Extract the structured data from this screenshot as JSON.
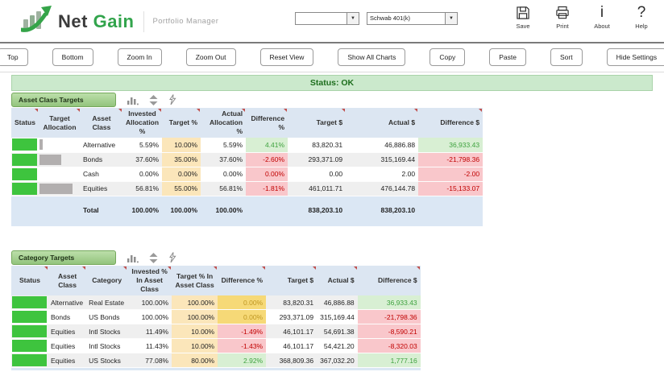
{
  "header": {
    "brand": {
      "name_primary": "Net",
      "name_secondary": "Gain",
      "subtitle": "Portfolio Manager"
    },
    "dropdowns": [
      {
        "value": ""
      },
      {
        "value": "Schwab 401(k)"
      }
    ],
    "actions": [
      {
        "label": "Save"
      },
      {
        "label": "Print"
      },
      {
        "label": "About",
        "glyph": "i"
      },
      {
        "label": "Help",
        "glyph": "?"
      }
    ]
  },
  "toolbar": {
    "buttons": [
      "Top",
      "Bottom",
      "Zoom In",
      "Zoom Out",
      "Reset View",
      "Show All Charts",
      "Copy",
      "Paste",
      "Sort",
      "Hide Settings"
    ]
  },
  "status_bar": {
    "text": "Status: OK"
  },
  "asset_class_targets": {
    "title": "Asset Class Targets",
    "columns": [
      "Status",
      "Target Allocation",
      "Asset Class",
      "Invested Allocation %",
      "Target %",
      "Actual Allocation %",
      "Difference %",
      "Target $",
      "Actual $",
      "Difference $"
    ],
    "rows": [
      {
        "asset_class": "Alternative",
        "bar_pct": 5.59,
        "invested_pct": "5.59%",
        "target_pct": "10.00%",
        "actual_pct": "5.59%",
        "diff_pct": "4.41%",
        "diff_pct_state": "good",
        "target_usd": "83,820.31",
        "actual_usd": "46,886.88",
        "diff_usd": "36,933.43",
        "diff_usd_state": "good"
      },
      {
        "asset_class": "Bonds",
        "bar_pct": 37.6,
        "invested_pct": "37.60%",
        "target_pct": "35.00%",
        "actual_pct": "37.60%",
        "diff_pct": "-2.60%",
        "diff_pct_state": "bad",
        "target_usd": "293,371.09",
        "actual_usd": "315,169.44",
        "diff_usd": "-21,798.36",
        "diff_usd_state": "bad"
      },
      {
        "asset_class": "Cash",
        "bar_pct": 0,
        "invested_pct": "0.00%",
        "target_pct": "0.00%",
        "actual_pct": "0.00%",
        "diff_pct": "0.00%",
        "diff_pct_state": "bad",
        "target_usd": "0.00",
        "actual_usd": "2.00",
        "diff_usd": "-2.00",
        "diff_usd_state": "bad"
      },
      {
        "asset_class": "Equities",
        "bar_pct": 56.81,
        "invested_pct": "56.81%",
        "target_pct": "55.00%",
        "actual_pct": "56.81%",
        "diff_pct": "-1.81%",
        "diff_pct_state": "bad",
        "target_usd": "461,011.71",
        "actual_usd": "476,144.78",
        "diff_usd": "-15,133.07",
        "diff_usd_state": "bad"
      }
    ],
    "total": {
      "label": "Total",
      "invested_pct": "100.00%",
      "target_pct": "100.00%",
      "actual_pct": "100.00%",
      "target_usd": "838,203.10",
      "actual_usd": "838,203.10"
    }
  },
  "category_targets": {
    "title": "Category Targets",
    "columns": [
      "Status",
      "Asset Class",
      "Category",
      "Invested % In Asset Class",
      "Target % In Asset Class",
      "Difference %",
      "Target $",
      "Actual $",
      "Difference $"
    ],
    "rows": [
      {
        "asset_class": "Alternative",
        "category": "Real Estate",
        "invested_pct": "100.00%",
        "target_pct": "100.00%",
        "diff_pct": "0.00%",
        "diff_pct_state": "warn",
        "target_usd": "83,820.31",
        "actual_usd": "46,886.88",
        "diff_usd": "36,933.43",
        "diff_usd_state": "good"
      },
      {
        "asset_class": "Bonds",
        "category": "US Bonds",
        "invested_pct": "100.00%",
        "target_pct": "100.00%",
        "diff_pct": "0.00%",
        "diff_pct_state": "warn",
        "target_usd": "293,371.09",
        "actual_usd": "315,169.44",
        "diff_usd": "-21,798.36",
        "diff_usd_state": "bad"
      },
      {
        "asset_class": "Equities",
        "category": "Intl Stocks",
        "invested_pct": "11.49%",
        "target_pct": "10.00%",
        "diff_pct": "-1.49%",
        "diff_pct_state": "bad",
        "target_usd": "46,101.17",
        "actual_usd": "54,691.38",
        "diff_usd": "-8,590.21",
        "diff_usd_state": "bad"
      },
      {
        "asset_class": "Equities",
        "category": "Intl Stocks",
        "invested_pct": "11.43%",
        "target_pct": "10.00%",
        "diff_pct": "-1.43%",
        "diff_pct_state": "bad",
        "target_usd": "46,101.17",
        "actual_usd": "54,421.20",
        "diff_usd": "-8,320.03",
        "diff_usd_state": "bad"
      },
      {
        "asset_class": "Equities",
        "category": "US Stocks",
        "invested_pct": "77.08%",
        "target_pct": "80.00%",
        "diff_pct": "2.92%",
        "diff_pct_state": "good",
        "target_usd": "368,809.36",
        "actual_usd": "367,032.20",
        "diff_usd": "1,777.16",
        "diff_usd_state": "good"
      }
    ]
  },
  "colors": {
    "accent_green": "#32a44c",
    "status_ok_bg": "#cbe9cc",
    "status_block": "#3ec43e",
    "good_bg": "#d8efd3",
    "good_text": "#3fa23f",
    "bad_bg": "#f9c7cb",
    "bad_text": "#c00000",
    "warn_bg": "#f6d977",
    "warn_text": "#bf9722",
    "editable_bg": "#fbe6ba",
    "table_header_bg": "#dce6f2"
  }
}
